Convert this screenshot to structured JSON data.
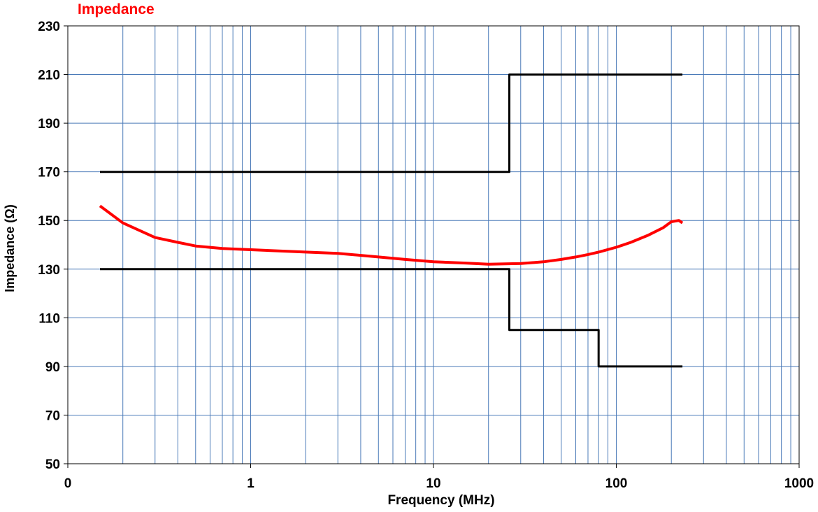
{
  "chart_data": {
    "type": "line",
    "title": "Impedance",
    "xlabel": "Frequency (MHz)",
    "ylabel": "Impedance (Ω)",
    "x_scale": "log",
    "xlim": [
      0.1,
      1000
    ],
    "ylim": [
      50,
      230
    ],
    "x_ticks": [
      {
        "value": 0.1,
        "label": "0"
      },
      {
        "value": 1,
        "label": "1"
      },
      {
        "value": 10,
        "label": "10"
      },
      {
        "value": 100,
        "label": "100"
      },
      {
        "value": 1000,
        "label": "1000"
      }
    ],
    "y_ticks": [
      50,
      70,
      90,
      110,
      130,
      150,
      170,
      190,
      210,
      230
    ],
    "grid": true,
    "legend": "none",
    "series": [
      {
        "color": "#ff0000",
        "x": [
          0.15,
          0.2,
          0.3,
          0.4,
          0.5,
          0.7,
          1,
          2,
          3,
          5,
          7,
          10,
          15,
          20,
          30,
          40,
          50,
          60,
          70,
          80,
          100,
          120,
          150,
          180,
          200,
          220,
          230
        ],
        "y": [
          156,
          149,
          143,
          141,
          139.5,
          138.5,
          138,
          137,
          136.5,
          135,
          134,
          133,
          132.5,
          132,
          132.3,
          133,
          134,
          135,
          136,
          137,
          139,
          141,
          144,
          147,
          149.5,
          150,
          149
        ]
      },
      {
        "color": "#000000",
        "x": [
          0.15,
          26,
          26,
          230
        ],
        "y": [
          170,
          170,
          210,
          210
        ]
      },
      {
        "color": "#000000",
        "x": [
          0.15,
          26,
          26,
          80,
          80,
          230
        ],
        "y": [
          130,
          130,
          105,
          105,
          90,
          90
        ]
      }
    ]
  }
}
